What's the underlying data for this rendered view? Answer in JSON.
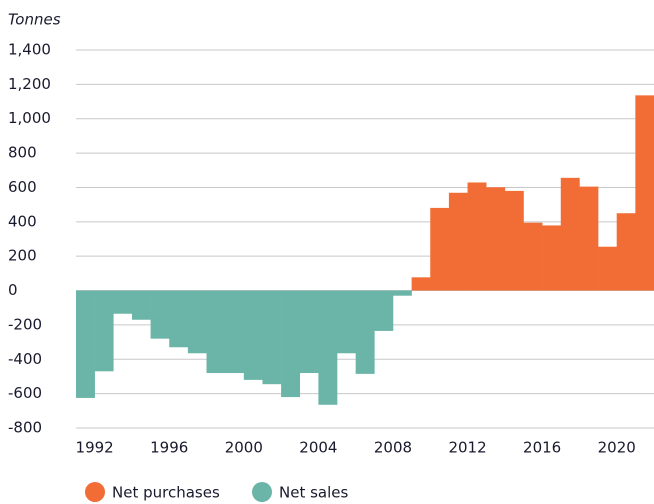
{
  "chart_data": {
    "type": "bar",
    "ylabel": "Tonnes",
    "categories": [
      "1992",
      null,
      null,
      null,
      "1996",
      null,
      null,
      null,
      "2000",
      null,
      null,
      null,
      "2004",
      null,
      null,
      null,
      "2008",
      null,
      null,
      null,
      "2012",
      null,
      null,
      null,
      "2016",
      null,
      null,
      null,
      "2020",
      null,
      null
    ],
    "series": [
      {
        "name": "Net purchases",
        "color": "#f26d35",
        "values": [
          null,
          null,
          null,
          null,
          null,
          null,
          null,
          null,
          null,
          null,
          null,
          null,
          null,
          null,
          null,
          null,
          null,
          null,
          77,
          481,
          569,
          629,
          601,
          580,
          395,
          379,
          656,
          605,
          255,
          450,
          1136
        ]
      },
      {
        "name": "Net sales",
        "color": "#6bb5a8",
        "values": [
          -625,
          -470,
          -135,
          -170,
          -280,
          -330,
          -365,
          -480,
          -480,
          -520,
          -545,
          -620,
          -480,
          -665,
          -365,
          -485,
          -235,
          -30,
          null,
          null,
          null,
          null,
          null,
          null,
          null,
          null,
          null,
          null,
          null,
          null,
          null
        ]
      }
    ],
    "ylim": [
      -800,
      1400
    ],
    "yticks": [
      {
        "value": -800,
        "label": "-800"
      },
      {
        "value": -600,
        "label": "-600"
      },
      {
        "value": -400,
        "label": "-400"
      },
      {
        "value": -200,
        "label": "-200"
      },
      0,
      200,
      400,
      600,
      800,
      {
        "value": 1000,
        "label": "1,000"
      },
      {
        "value": 1200,
        "label": "1,200"
      },
      {
        "value": 1400,
        "label": "1,400"
      }
    ],
    "grid": true,
    "legend": "bottom"
  }
}
